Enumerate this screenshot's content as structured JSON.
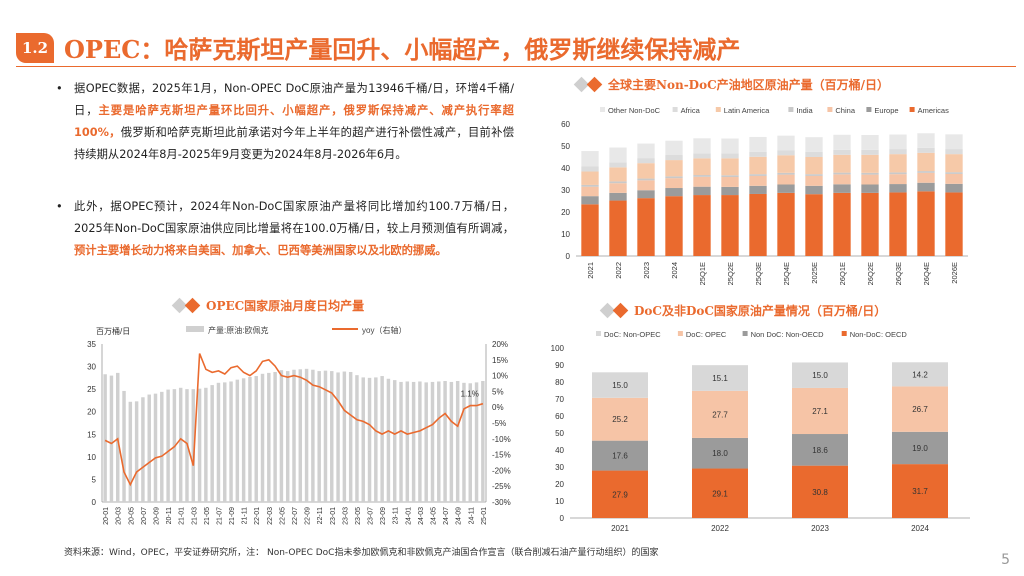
{
  "header": {
    "section": "1.2",
    "title": "OPEC：哈萨克斯坦产量回升、小幅超产，俄罗斯继续保持减产"
  },
  "bullets": [
    {
      "marker": "•",
      "t1": "据OPEC数据，2025年1月，Non-OPEC DoC原油产量为13946千桶/日，环增4千桶/日，",
      "h1": "主要是哈萨克斯坦产量环比回升、小幅超产，俄罗斯保持减产、减产执行率超100%，",
      "t2": "俄罗斯和哈萨克斯坦此前承诺对今年上半年的超产进行补偿性减产，目前补偿持续期从2024年8月-2025年9月变更为2024年8月-2026年6月。"
    },
    {
      "marker": "•",
      "t1": "此外，据OPEC预计，2024年Non-DoC国家原油产量将同比增加约100.7万桶/日，2025年Non-DoC国家原油供应同比增量将在100.0万桶/日，较上月预测值有所调减，",
      "h1": "预计主要增长动力将来自美国、加拿大、巴西等美洲国家以及北欧的挪威。",
      "t2": ""
    }
  ],
  "chart_titles": {
    "c1": "全球主要Non-DoC产油地区原油产量（百万桶/日）",
    "c2": "OPEC国家原油月度日均产量",
    "c3": "DoC及非DoC国家原油产量情况（百万桶/日）"
  },
  "footer": "资料来源：Wind，OPEC，平安证券研究所，注： Non-OPEC DoC指未参加欧佩克和非欧佩克产油国合作宣言（联合削减石油产量行动组织）的国家",
  "page_number": "5",
  "colors": {
    "accent": "#ea6a2e",
    "americas": "#ea6a2e",
    "europe": "#999999",
    "china": "#f6c4a6",
    "india": "#c9c9c9",
    "latam": "#f6c9a8",
    "africa": "#dcdcdc",
    "other": "#e8e8e8"
  },
  "chart_data": [
    {
      "id": "c1",
      "type": "bar",
      "stacked": true,
      "categories": [
        "2021",
        "2022",
        "2023",
        "2024",
        "25Q1E",
        "25Q2E",
        "25Q3E",
        "25Q4E",
        "2025E",
        "26Q1E",
        "26Q2E",
        "26Q3E",
        "26Q4E",
        "2026E"
      ],
      "ylim": [
        0,
        60
      ],
      "yticks": [
        0,
        10,
        20,
        30,
        40,
        50,
        60
      ],
      "legend_position": "top",
      "series": [
        {
          "name": "Americas",
          "color": "#ea6a2e",
          "values": [
            23.5,
            25.2,
            26.3,
            27.2,
            27.7,
            27.7,
            28.2,
            28.7,
            28.1,
            28.7,
            28.7,
            28.9,
            29.4,
            28.9
          ]
        },
        {
          "name": "Europe",
          "color": "#9b9b9b",
          "values": [
            3.7,
            3.5,
            3.6,
            3.7,
            3.8,
            3.7,
            3.7,
            3.8,
            3.8,
            3.9,
            3.8,
            3.8,
            3.9,
            3.9
          ]
        },
        {
          "name": "China",
          "color": "#f6c4a6",
          "values": [
            4.3,
            4.4,
            4.5,
            4.5,
            4.5,
            4.5,
            4.5,
            4.5,
            4.5,
            4.5,
            4.5,
            4.5,
            4.5,
            4.5
          ]
        },
        {
          "name": "India",
          "color": "#c9c9c9",
          "values": [
            0.8,
            0.8,
            0.8,
            0.8,
            0.8,
            0.8,
            0.8,
            0.8,
            0.8,
            0.8,
            0.8,
            0.8,
            0.8,
            0.8
          ]
        },
        {
          "name": "Latin America",
          "color": "#f6c9a8",
          "values": [
            6.1,
            6.4,
            7.0,
            7.4,
            7.6,
            7.7,
            7.9,
            8.0,
            7.8,
            8.1,
            8.2,
            8.3,
            8.3,
            8.2
          ]
        },
        {
          "name": "Africa",
          "color": "#dcdcdc",
          "values": [
            2.3,
            2.3,
            2.3,
            2.3,
            2.3,
            2.3,
            2.3,
            2.3,
            2.3,
            2.3,
            2.3,
            2.3,
            2.3,
            2.3
          ]
        },
        {
          "name": "Other Non-DoC",
          "color": "#e8e8e8",
          "values": [
            7.0,
            6.7,
            6.6,
            6.5,
            6.8,
            6.7,
            6.7,
            6.6,
            6.7,
            6.8,
            6.7,
            6.6,
            6.6,
            6.7
          ]
        }
      ],
      "legend_order": [
        "Other Non-DoC",
        "Africa",
        "Latin America",
        "India",
        "China",
        "Europe",
        "Americas"
      ]
    },
    {
      "id": "c2",
      "type": "bar+line",
      "ylabel": "百万桶/日",
      "series": [
        {
          "name": "产量:原油:欧佩克",
          "color": "#d0d0d0",
          "axis": "left"
        },
        {
          "name": "yoy（右轴）",
          "color": "#ea6a2e",
          "axis": "right"
        }
      ],
      "ylim": [
        0,
        35
      ],
      "yticks": [
        0,
        5,
        10,
        15,
        20,
        25,
        30,
        35
      ],
      "y2lim": [
        -30,
        20
      ],
      "y2ticks": [
        "-30%",
        "-25%",
        "-20%",
        "-15%",
        "-10%",
        "-5%",
        "0%",
        "5%",
        "10%",
        "15%",
        "20%"
      ],
      "xticks": [
        "20-01",
        "20-03",
        "20-05",
        "20-07",
        "20-09",
        "20-11",
        "21-01",
        "21-03",
        "21-05",
        "21-07",
        "21-09",
        "21-11",
        "22-01",
        "22-03",
        "22-05",
        "22-07",
        "22-09",
        "22-11",
        "23-01",
        "23-03",
        "23-05",
        "23-07",
        "23-09",
        "23-11",
        "24-01",
        "24-03",
        "24-05",
        "24-07",
        "24-09",
        "24-11",
        "25-01"
      ],
      "annotation": "1.1%",
      "production": [
        28.3,
        28.0,
        28.6,
        24.6,
        22.2,
        22.3,
        23.2,
        23.8,
        24.0,
        24.4,
        24.9,
        25.0,
        25.3,
        25.0,
        25.0,
        25.1,
        25.3,
        25.9,
        26.4,
        26.5,
        26.7,
        27.1,
        27.4,
        27.7,
        27.9,
        28.4,
        28.6,
        28.8,
        29.2,
        29.0,
        29.3,
        29.4,
        29.5,
        29.3,
        29.0,
        29.1,
        29.0,
        28.7,
        28.9,
        28.8,
        28.1,
        27.6,
        27.5,
        27.6,
        27.9,
        27.3,
        27.0,
        26.6,
        26.7,
        26.6,
        26.7,
        26.5,
        26.6,
        26.7,
        26.8,
        26.6,
        26.8,
        26.4,
        26.3,
        26.5,
        26.8
      ],
      "yoy": [
        -10.5,
        -11.5,
        -10.0,
        -20.5,
        -24.5,
        -20.5,
        -19.0,
        -17.5,
        -16.0,
        -15.5,
        -14.0,
        -12.5,
        -10.0,
        -11.5,
        -18.5,
        17.0,
        12.0,
        11.0,
        11.5,
        10.5,
        12.5,
        13.0,
        11.0,
        10.0,
        11.5,
        14.5,
        15.0,
        13.0,
        10.0,
        9.5,
        10.0,
        9.5,
        8.5,
        7.0,
        6.5,
        5.5,
        4.5,
        2.0,
        -1.0,
        -2.5,
        -4.0,
        -4.5,
        -5.5,
        -7.5,
        -8.5,
        -7.5,
        -8.5,
        -7.5,
        -8.5,
        -8.0,
        -7.5,
        -6.5,
        -5.5,
        -3.5,
        -2.0,
        -4.5,
        -6.0,
        -0.5,
        0.5,
        0.5,
        1.1
      ]
    },
    {
      "id": "c3",
      "type": "bar",
      "stacked": true,
      "categories": [
        "2021",
        "2022",
        "2023",
        "2024"
      ],
      "ylim": [
        0,
        100
      ],
      "yticks": [
        0,
        10,
        20,
        30,
        40,
        50,
        60,
        70,
        80,
        90,
        100
      ],
      "legend_position": "top",
      "series": [
        {
          "name": "Non-DoC: OECD",
          "color": "#ea6a2e",
          "values": [
            27.9,
            29.1,
            30.8,
            31.7
          ]
        },
        {
          "name": "Non DoC: Non-OECD",
          "color": "#9b9b9b",
          "values": [
            17.6,
            18.0,
            18.6,
            19.0
          ]
        },
        {
          "name": "DoC: OPEC",
          "color": "#f6c4a6",
          "values": [
            25.2,
            27.7,
            27.1,
            26.7
          ]
        },
        {
          "name": "DoC: Non-OPEC",
          "color": "#d8d8d8",
          "values": [
            15.0,
            15.1,
            15.0,
            14.2
          ]
        }
      ],
      "legend_order": [
        "DoC: Non-OPEC",
        "DoC: OPEC",
        "Non DoC: Non-OECD",
        "Non-DoC: OECD"
      ]
    }
  ]
}
